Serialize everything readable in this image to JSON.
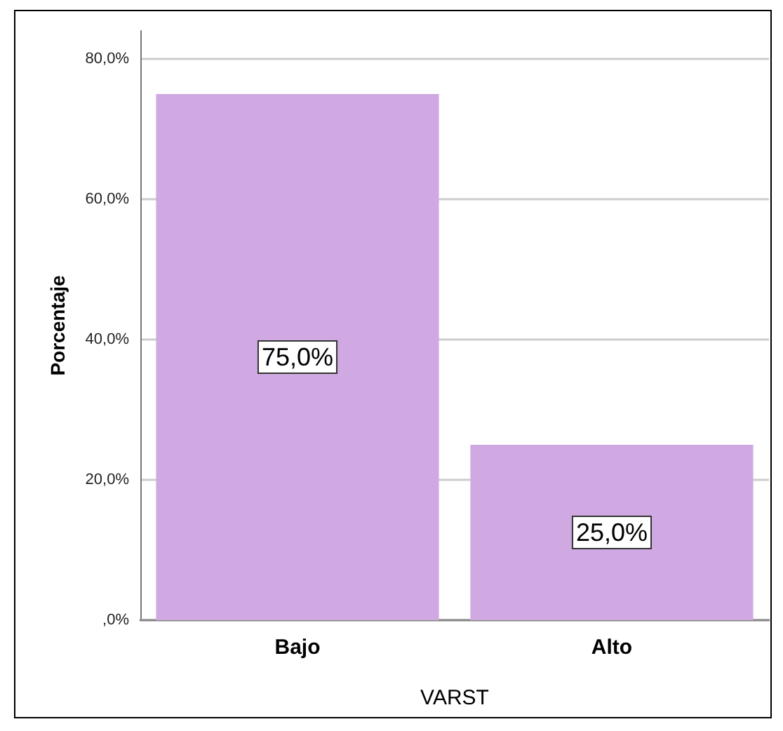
{
  "chart_data": {
    "type": "bar",
    "xlabel": "VARST",
    "ylabel": "Porcentaje",
    "categories": [
      "Bajo",
      "Alto"
    ],
    "values": [
      75,
      25
    ],
    "value_labels": [
      "75,0%",
      "25,0%"
    ],
    "color": "#d0a9e3",
    "ylim": [
      0,
      84
    ],
    "yticks": [
      {
        "value": 0,
        "label": ",0%"
      },
      {
        "value": 20,
        "label": "20,0%"
      },
      {
        "value": 40,
        "label": "40,0%"
      },
      {
        "value": 60,
        "label": "60,0%"
      },
      {
        "value": 80,
        "label": "80,0%"
      }
    ],
    "grid": "y"
  }
}
